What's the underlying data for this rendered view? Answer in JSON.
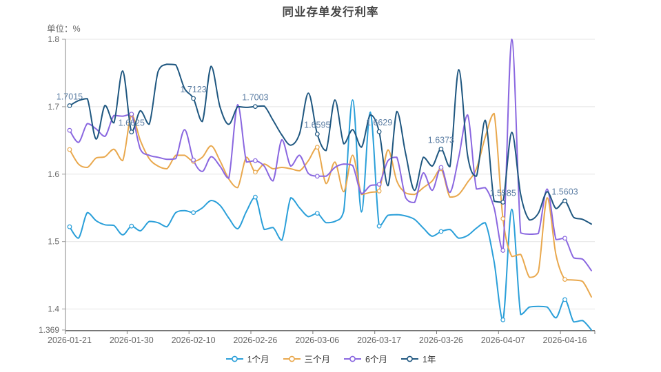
{
  "chart_data": {
    "type": "line",
    "title": "同业存单发行利率",
    "unit_label": "单位：%",
    "smooth": true,
    "grid": true,
    "legend_position": "bottom",
    "label_color": "#5B7DA3",
    "axis_color": "#999999",
    "x_axis_line_color": "#787878",
    "grid_color": "#E4E4E4",
    "tick_label_color": "#666666",
    "background_color": "#FFFFFF",
    "x_axis": {
      "num_points": 60,
      "tick_indices": [
        0,
        7,
        14,
        21,
        28,
        35,
        42,
        49,
        56
      ],
      "tick_labels": [
        "2026-01-21",
        "2026-01-30",
        "2026-02-10",
        "2026-02-26",
        "2026-03-06",
        "2026-03-17",
        "2026-03-26",
        "2026-04-07",
        "2026-04-16"
      ]
    },
    "y_axis": {
      "min": 1.369,
      "max": 1.8,
      "tick_values": [
        1.8,
        1.7,
        1.6,
        1.5,
        1.4,
        1.369
      ],
      "tick_labels": [
        "1.8",
        "1.7",
        "1.6",
        "1.5",
        "1.4",
        "1.369"
      ]
    },
    "marker_indices": [
      0,
      7,
      14,
      21,
      28,
      35,
      42,
      49,
      56
    ],
    "series": [
      {
        "name": "1个月",
        "color": "#2A9FD9",
        "values": [
          1.522,
          1.505,
          1.543,
          1.531,
          1.525,
          1.524,
          1.51,
          1.523,
          1.516,
          1.53,
          1.528,
          1.522,
          1.543,
          1.546,
          1.543,
          1.55,
          1.561,
          1.554,
          1.535,
          1.519,
          1.545,
          1.566,
          1.518,
          1.521,
          1.502,
          1.565,
          1.55,
          1.537,
          1.542,
          1.528,
          1.53,
          1.545,
          1.71,
          1.544,
          1.692,
          1.523,
          1.539,
          1.54,
          1.538,
          1.533,
          1.52,
          1.508,
          1.515,
          1.518,
          1.505,
          1.509,
          1.52,
          1.528,
          1.47,
          1.384,
          1.548,
          1.392,
          1.403,
          1.404,
          1.403,
          1.387,
          1.414,
          1.381,
          1.383,
          1.369
        ]
      },
      {
        "name": "三个月",
        "color": "#E9A84D",
        "values": [
          1.6365,
          1.615,
          1.61,
          1.624,
          1.626,
          1.637,
          1.62,
          1.688,
          1.65,
          1.623,
          1.612,
          1.608,
          1.628,
          1.628,
          1.619,
          1.625,
          1.642,
          1.62,
          1.593,
          1.58,
          1.625,
          1.603,
          1.615,
          1.608,
          1.61,
          1.608,
          1.605,
          1.62,
          1.64,
          1.586,
          1.618,
          1.574,
          1.628,
          1.57,
          1.573,
          1.575,
          1.636,
          1.59,
          1.572,
          1.57,
          1.58,
          1.59,
          1.608,
          1.566,
          1.57,
          1.588,
          1.608,
          1.655,
          1.69,
          1.534,
          1.478,
          1.481,
          1.447,
          1.455,
          1.565,
          1.48,
          1.444,
          1.443,
          1.441,
          1.418
        ]
      },
      {
        "name": "6个月",
        "color": "#8A67E0",
        "values": [
          1.665,
          1.647,
          1.675,
          1.667,
          1.656,
          1.687,
          1.686,
          1.689,
          1.637,
          1.628,
          1.625,
          1.622,
          1.623,
          1.666,
          1.621,
          1.604,
          1.626,
          1.612,
          1.594,
          1.703,
          1.618,
          1.62,
          1.612,
          1.59,
          1.651,
          1.612,
          1.628,
          1.601,
          1.597,
          1.597,
          1.61,
          1.615,
          1.613,
          1.571,
          1.583,
          1.585,
          1.62,
          1.625,
          1.565,
          1.558,
          1.602,
          1.576,
          1.61,
          1.573,
          1.625,
          1.688,
          1.578,
          1.58,
          1.55,
          1.487,
          1.8,
          1.513,
          1.511,
          1.512,
          1.578,
          1.503,
          1.505,
          1.476,
          1.474,
          1.457
        ]
      },
      {
        "name": "1年",
        "color": "#1F5780",
        "values": [
          1.7015,
          1.709,
          1.712,
          1.652,
          1.702,
          1.676,
          1.753,
          1.6625,
          1.694,
          1.674,
          1.752,
          1.763,
          1.762,
          1.727,
          1.7123,
          1.678,
          1.76,
          1.7,
          1.674,
          1.7,
          1.699,
          1.7003,
          1.701,
          1.68,
          1.658,
          1.643,
          1.66,
          1.72,
          1.6595,
          1.635,
          1.71,
          1.645,
          1.666,
          1.64,
          1.688,
          1.6629,
          1.583,
          1.693,
          1.63,
          1.576,
          1.625,
          1.612,
          1.6373,
          1.611,
          1.755,
          1.628,
          1.597,
          1.68,
          1.56,
          1.5585,
          1.662,
          1.57,
          1.532,
          1.542,
          1.574,
          1.549,
          1.5603,
          1.536,
          1.533,
          1.526
        ],
        "point_labels": {
          "0": "1.7015",
          "7": "1.6625",
          "14": "1.7123",
          "21": "1.7003",
          "28": "1.6595",
          "35": "1.6629",
          "42": "1.6373",
          "49": "1.5585",
          "56": "1.5603"
        }
      }
    ]
  }
}
